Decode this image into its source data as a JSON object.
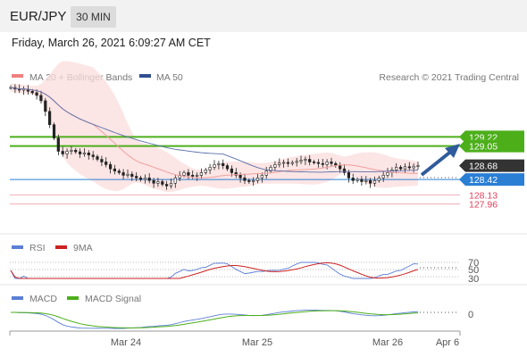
{
  "header": {
    "symbol": "EUR/JPY",
    "interval": "30 MIN",
    "datetime": "Friday, March 26, 2021 6:09:27 AM CET"
  },
  "legend": {
    "ma20": {
      "label": "MA 20 + Bollinger Bands",
      "color": "#f08080"
    },
    "ma50": {
      "label": "MA 50",
      "color": "#2f4f8f"
    },
    "copyright": "Research © 2021 Trading Central"
  },
  "price_levels": [
    {
      "value": "129.22",
      "kind": "resistance",
      "color": "#4caf1a"
    },
    {
      "value": "129.05",
      "kind": "resistance",
      "color": "#4caf1a"
    },
    {
      "value": "128.68",
      "kind": "last",
      "color": "#333333"
    },
    {
      "value": "128.42",
      "kind": "pivot",
      "color": "#2a7fd4"
    },
    {
      "value": "128.13",
      "kind": "support",
      "color": "#e0405a"
    },
    {
      "value": "127.96",
      "kind": "support",
      "color": "#e0405a"
    }
  ],
  "rsi_panel": {
    "label": "RSI",
    "ma_label": "9MA",
    "rsi_color": "#5b7fd4",
    "ma_color": "#cc2222",
    "levels": [
      "70",
      "50",
      "30"
    ]
  },
  "macd_panel": {
    "label": "MACD",
    "signal_label": "MACD Signal",
    "macd_color": "#5b7fd4",
    "signal_color": "#4caf1a",
    "zero_label": "0"
  },
  "x_axis": {
    "ticks": [
      "Mar 24",
      "Mar 25",
      "Mar 26",
      "Apr 6"
    ]
  },
  "chart_data": {
    "type": "line",
    "title": "EUR/JPY",
    "ylim": [
      127.6,
      130.2
    ],
    "close": [
      130.15,
      130.12,
      130.1,
      130.12,
      130.08,
      130.05,
      130.0,
      129.9,
      129.7,
      129.45,
      129.2,
      128.95,
      128.9,
      128.95,
      128.97,
      128.94,
      128.9,
      128.92,
      128.88,
      128.85,
      128.8,
      128.75,
      128.7,
      128.62,
      128.58,
      128.55,
      128.5,
      128.52,
      128.48,
      128.45,
      128.42,
      128.45,
      128.4,
      128.35,
      128.38,
      128.33,
      128.3,
      128.35,
      128.45,
      128.5,
      128.55,
      128.5,
      128.48,
      128.5,
      128.55,
      128.6,
      128.65,
      128.7,
      128.72,
      128.68,
      128.62,
      128.55,
      128.5,
      128.45,
      128.4,
      128.38,
      128.4,
      128.45,
      128.5,
      128.58,
      128.65,
      128.7,
      128.73,
      128.74,
      128.72,
      128.74,
      128.76,
      128.78,
      128.8,
      128.75,
      128.74,
      128.72,
      128.7,
      128.75,
      128.72,
      128.68,
      128.62,
      128.55,
      128.45,
      128.4,
      128.42,
      128.38,
      128.4,
      128.35,
      128.4,
      128.45,
      128.5,
      128.55,
      128.6,
      128.65,
      128.62,
      128.66,
      128.64,
      128.67,
      128.68
    ]
  }
}
